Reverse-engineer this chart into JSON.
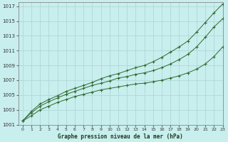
{
  "title": "Graphe pression niveau de la mer (hPa)",
  "bg_color": "#c8eeee",
  "grid_color": "#b0d8d8",
  "line_color": "#2d6a2d",
  "xlim": [
    -0.5,
    23
  ],
  "ylim": [
    1001,
    1017.5
  ],
  "yticks": [
    1001,
    1003,
    1005,
    1007,
    1009,
    1011,
    1013,
    1015,
    1017
  ],
  "xticks": [
    0,
    1,
    2,
    3,
    4,
    5,
    6,
    7,
    8,
    9,
    10,
    11,
    12,
    13,
    14,
    15,
    16,
    17,
    18,
    19,
    20,
    21,
    22,
    23
  ],
  "line1_x": [
    0,
    1,
    2,
    3,
    4,
    5,
    6,
    7,
    8,
    9,
    10,
    11,
    12,
    13,
    14,
    15,
    16,
    17,
    18,
    19,
    20,
    21,
    22,
    23
  ],
  "line1_y": [
    1001.5,
    1002.2,
    1003.0,
    1003.5,
    1004.0,
    1004.4,
    1004.8,
    1005.1,
    1005.4,
    1005.7,
    1005.9,
    1006.1,
    1006.3,
    1006.5,
    1006.6,
    1006.8,
    1007.0,
    1007.3,
    1007.6,
    1008.0,
    1008.5,
    1009.2,
    1010.2,
    1011.5
  ],
  "line2_x": [
    0,
    1,
    2,
    3,
    4,
    5,
    6,
    7,
    8,
    9,
    10,
    11,
    12,
    13,
    14,
    15,
    16,
    17,
    18,
    19,
    20,
    21,
    22,
    23
  ],
  "line2_y": [
    1001.5,
    1002.6,
    1003.5,
    1004.1,
    1004.6,
    1005.1,
    1005.5,
    1005.9,
    1006.3,
    1006.6,
    1006.9,
    1007.3,
    1007.5,
    1007.8,
    1008.0,
    1008.3,
    1008.7,
    1009.2,
    1009.8,
    1010.5,
    1011.5,
    1012.8,
    1014.2,
    1015.3
  ],
  "line3_x": [
    0,
    1,
    2,
    3,
    4,
    5,
    6,
    7,
    8,
    9,
    10,
    11,
    12,
    13,
    14,
    15,
    16,
    17,
    18,
    19,
    20,
    21,
    22,
    23
  ],
  "line3_y": [
    1001.5,
    1002.8,
    1003.8,
    1004.4,
    1004.9,
    1005.5,
    1005.9,
    1006.3,
    1006.7,
    1007.2,
    1007.6,
    1007.9,
    1008.3,
    1008.7,
    1009.0,
    1009.5,
    1010.1,
    1010.8,
    1011.5,
    1012.3,
    1013.5,
    1014.8,
    1016.1,
    1017.3
  ]
}
